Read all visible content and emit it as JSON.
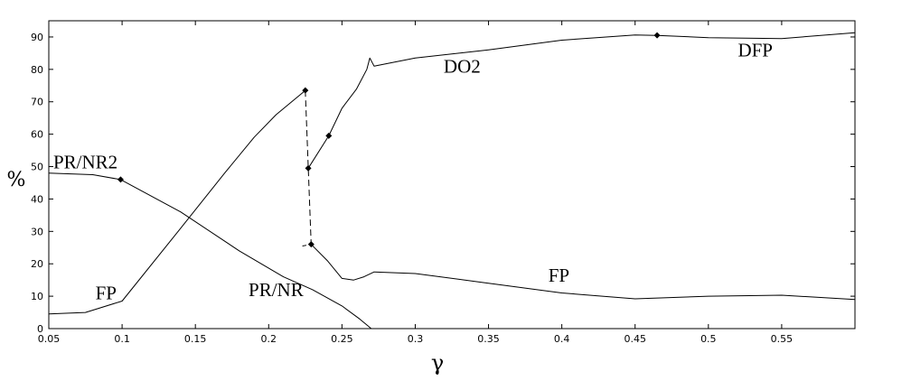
{
  "chart_data": {
    "type": "line",
    "xlabel": "γ",
    "ylabel": "%",
    "xlim": [
      0.05,
      0.6
    ],
    "ylim": [
      0,
      95
    ],
    "grid": false,
    "x_ticks": [
      0.05,
      0.1,
      0.15,
      0.2,
      0.25,
      0.3,
      0.35,
      0.4,
      0.45,
      0.5,
      0.55
    ],
    "x_tick_labels": [
      "0.05",
      "0.1",
      "0.15",
      "0.2",
      "0.25",
      "0.3",
      "0.35",
      "0.4",
      "0.45",
      "0.5",
      "0.55"
    ],
    "y_ticks": [
      0,
      10,
      20,
      30,
      40,
      50,
      60,
      70,
      80,
      90
    ],
    "y_tick_labels": [
      "0",
      "10",
      "20",
      "30",
      "40",
      "50",
      "60",
      "70",
      "80",
      "90"
    ],
    "series": [
      {
        "name": "PR/NR2",
        "style": "solid",
        "points": [
          [
            0.05,
            48
          ],
          [
            0.08,
            47.5
          ],
          [
            0.099,
            46
          ],
          [
            0.14,
            36
          ],
          [
            0.18,
            24
          ],
          [
            0.21,
            16
          ],
          [
            0.23,
            12
          ],
          [
            0.25,
            7
          ],
          [
            0.262,
            3
          ],
          [
            0.27,
            0
          ]
        ]
      },
      {
        "name": "PR/NR",
        "style": "solid",
        "points": []
      },
      {
        "name": "FP",
        "style": "solid",
        "points": [
          [
            0.05,
            4.5
          ],
          [
            0.075,
            5
          ],
          [
            0.1,
            8.5
          ],
          [
            0.14,
            31
          ],
          [
            0.17,
            48
          ],
          [
            0.19,
            59
          ],
          [
            0.205,
            66
          ],
          [
            0.225,
            73.5
          ]
        ]
      },
      {
        "name": "FP",
        "style": "solid",
        "points": [
          [
            0.229,
            26
          ],
          [
            0.24,
            21
          ],
          [
            0.25,
            15.5
          ],
          [
            0.258,
            15
          ],
          [
            0.265,
            16
          ],
          [
            0.272,
            17.5
          ],
          [
            0.3,
            17
          ],
          [
            0.35,
            14
          ],
          [
            0.4,
            11
          ],
          [
            0.45,
            9.2
          ],
          [
            0.5,
            10
          ],
          [
            0.55,
            10.3
          ],
          [
            0.6,
            9
          ]
        ]
      },
      {
        "name": "DO2",
        "style": "solid",
        "points": [
          [
            0.227,
            49.5
          ],
          [
            0.241,
            59.5
          ],
          [
            0.25,
            68
          ],
          [
            0.26,
            74
          ],
          [
            0.267,
            80
          ],
          [
            0.269,
            83.5
          ],
          [
            0.272,
            81
          ],
          [
            0.3,
            83.5
          ],
          [
            0.35,
            86
          ],
          [
            0.4,
            89
          ],
          [
            0.45,
            90.6
          ],
          [
            0.465,
            90.5
          ]
        ]
      },
      {
        "name": "DFP",
        "style": "solid",
        "points": [
          [
            0.465,
            90.5
          ],
          [
            0.5,
            89.8
          ],
          [
            0.55,
            89.5
          ],
          [
            0.6,
            91.3
          ]
        ]
      },
      {
        "name": "",
        "style": "dashed",
        "points": [
          [
            0.225,
            73.5
          ],
          [
            0.227,
            49.5
          ],
          [
            0.229,
            26
          ],
          [
            0.223,
            25.5
          ]
        ]
      }
    ],
    "markers": [
      [
        0.099,
        46
      ],
      [
        0.225,
        73.5
      ],
      [
        0.241,
        59.5
      ],
      [
        0.227,
        49.5
      ],
      [
        0.229,
        26
      ],
      [
        0.465,
        90.5
      ]
    ],
    "annotations": [
      {
        "text": "PR/NR2",
        "x": 0.075,
        "y": 49.5
      },
      {
        "text": "FP",
        "x": 0.089,
        "y": 9
      },
      {
        "text": "PR/NR",
        "x": 0.205,
        "y": 10
      },
      {
        "text": "FP",
        "x": 0.398,
        "y": 14.5
      },
      {
        "text": "DO2",
        "x": 0.332,
        "y": 79
      },
      {
        "text": "DFP",
        "x": 0.532,
        "y": 84
      }
    ]
  }
}
